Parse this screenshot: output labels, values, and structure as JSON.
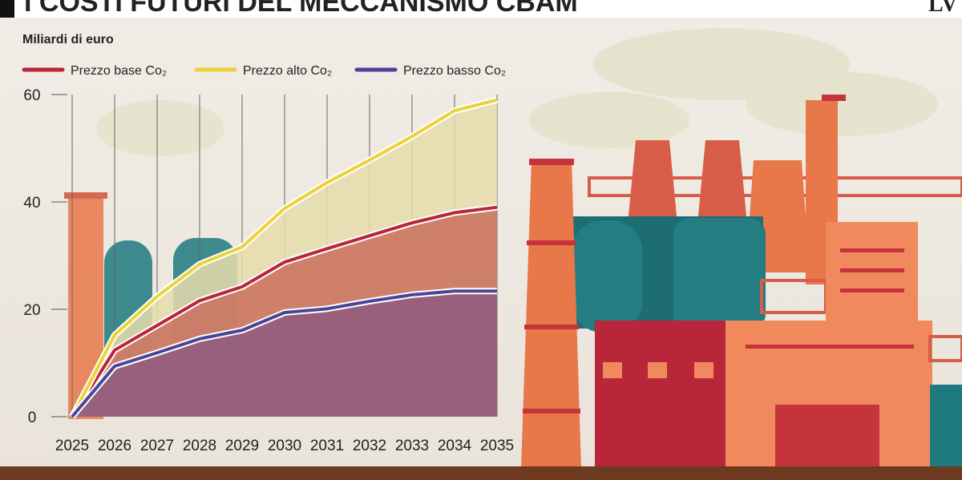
{
  "title": "I COSTI FUTURI DEL MECCANISMO CBAM",
  "logo": "LV",
  "chart_data": {
    "type": "area-line",
    "y_label": "Miliardi di euro",
    "x": [
      2025,
      2026,
      2027,
      2028,
      2029,
      2030,
      2031,
      2032,
      2033,
      2034,
      2035
    ],
    "xlim": [
      2025,
      2035
    ],
    "xticks": [
      2025,
      2026,
      2027,
      2028,
      2029,
      2030,
      2031,
      2032,
      2033,
      2034,
      2035
    ],
    "ylim": [
      0,
      60
    ],
    "yticks": [
      0,
      20,
      40,
      60
    ],
    "grid": "x",
    "series": [
      {
        "name": "Prezzo base Co₂",
        "color": "#b8263a",
        "fill": "#c9705e",
        "values": [
          0,
          12.4,
          17,
          21.6,
          24.2,
          28.8,
          31.3,
          33.7,
          36.1,
          38,
          39
        ]
      },
      {
        "name": "Prezzo alto Co₂",
        "color": "#ecd23a",
        "fill": "#e6dcaa",
        "values": [
          0,
          15.2,
          22.4,
          28.4,
          31.6,
          38.8,
          43.6,
          47.8,
          52.2,
          57,
          59
        ]
      },
      {
        "name": "Prezzo basso Co₂",
        "color": "#4b4598",
        "fill": "#8e5a80",
        "values": [
          0,
          9.4,
          11.9,
          14.5,
          16.1,
          19.4,
          20.1,
          21.5,
          22.7,
          23.4,
          23.4
        ]
      }
    ]
  }
}
